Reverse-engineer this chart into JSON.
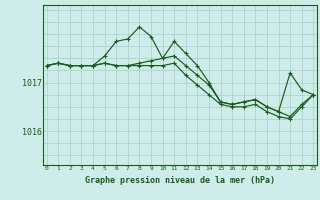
{
  "title": "Graphe pression niveau de la mer (hPa)",
  "background_color": "#ceecea",
  "grid_color": "#aad4d0",
  "line_color": "#1a5c1a",
  "x_ticks": [
    0,
    1,
    2,
    3,
    4,
    5,
    6,
    7,
    8,
    9,
    10,
    11,
    12,
    13,
    14,
    15,
    16,
    17,
    18,
    19,
    20,
    21,
    22,
    23
  ],
  "y_ticks": [
    1016,
    1017
  ],
  "xlim": [
    -0.3,
    23.3
  ],
  "ylim": [
    1015.3,
    1018.6
  ],
  "y_grid": [
    1015.5,
    1015.75,
    1016.0,
    1016.25,
    1016.5,
    1016.75,
    1017.0,
    1017.25,
    1017.5,
    1017.75,
    1018.0,
    1018.25,
    1018.5
  ],
  "series": {
    "line1": [
      1017.35,
      1017.4,
      1017.35,
      1017.35,
      1017.35,
      1017.55,
      1017.85,
      1017.9,
      1018.15,
      1017.95,
      1017.5,
      1017.85,
      1017.6,
      1017.35,
      1017.0,
      1016.6,
      1016.55,
      1016.6,
      1016.65,
      1016.5,
      1016.4,
      1017.2,
      1016.85,
      1016.75
    ],
    "line2": [
      1017.35,
      1017.4,
      1017.35,
      1017.35,
      1017.35,
      1017.4,
      1017.35,
      1017.35,
      1017.4,
      1017.45,
      1017.5,
      1017.55,
      1017.35,
      1017.15,
      1016.95,
      1016.6,
      1016.55,
      1016.6,
      1016.65,
      1016.5,
      1016.4,
      1016.3,
      1016.55,
      1016.75
    ],
    "line3": [
      1017.35,
      1017.4,
      1017.35,
      1017.35,
      1017.35,
      1017.4,
      1017.35,
      1017.35,
      1017.35,
      1017.35,
      1017.35,
      1017.4,
      1017.15,
      1016.95,
      1016.75,
      1016.55,
      1016.5,
      1016.5,
      1016.55,
      1016.4,
      1016.3,
      1016.25,
      1016.5,
      1016.75
    ]
  }
}
